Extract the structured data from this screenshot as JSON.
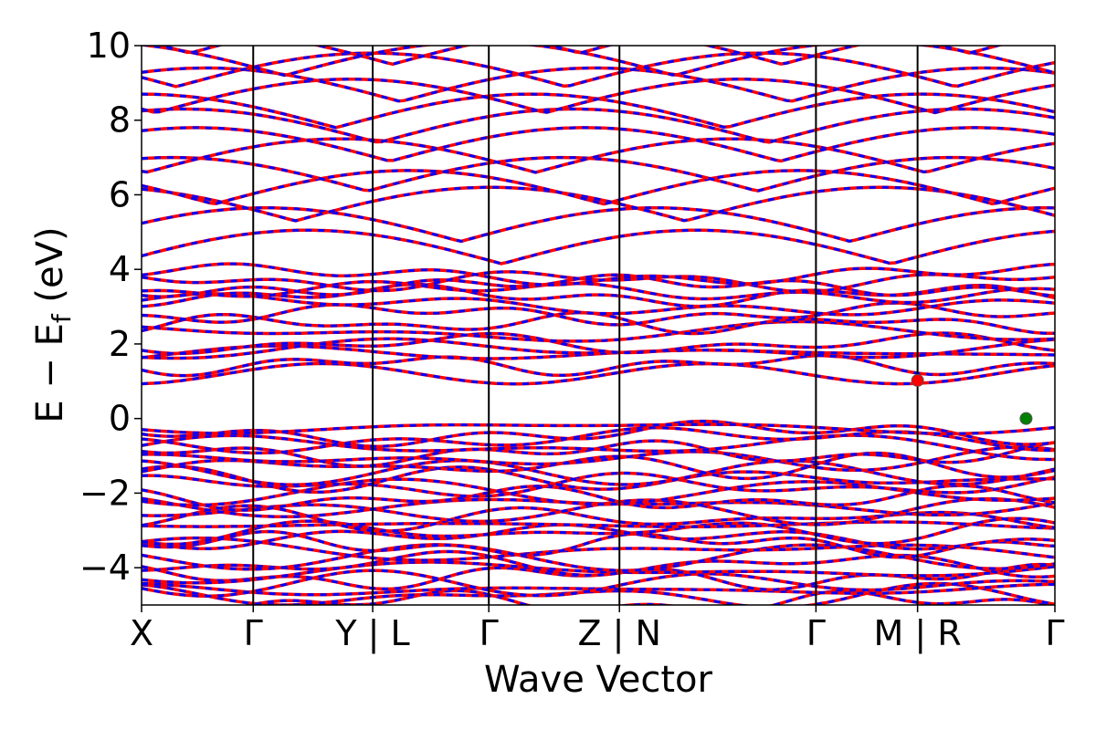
{
  "chart_data": {
    "type": "line",
    "title": "",
    "xlabel": "Wave Vector",
    "ylabel": {
      "main": "E − E",
      "sub": "f",
      "unit": " (eV)"
    },
    "ylim": [
      -5,
      10
    ],
    "yticks": [
      10,
      8,
      6,
      4,
      2,
      0,
      -2,
      -4
    ],
    "ytick_labels": [
      "10",
      "8",
      "6",
      "4",
      "2",
      "0",
      "−2",
      "−4"
    ],
    "kpath_segments": [
      {
        "from": "X",
        "to": "Γ",
        "length": 1.0
      },
      {
        "from": "Γ",
        "to": "Y",
        "length": 1.07
      },
      {
        "from": "L",
        "to": "Γ",
        "length": 1.04
      },
      {
        "from": "Γ",
        "to": "Z",
        "length": 1.17
      },
      {
        "from": "N",
        "to": "Γ",
        "length": 1.76
      },
      {
        "from": "Γ",
        "to": "M",
        "length": 0.91
      },
      {
        "from": "R",
        "to": "Γ",
        "length": 1.23
      }
    ],
    "xtick_labels": [
      "X",
      "Γ",
      "Y | L",
      "Γ",
      "Z | N",
      "Γ",
      "M | R",
      "Γ"
    ],
    "series": [
      {
        "color": "#ff0000",
        "style": "solid"
      },
      {
        "color": "#0000ff",
        "style": "dashed"
      }
    ],
    "grid": false,
    "band_edges": {
      "conduction_min": {
        "x_segment": 5,
        "x_frac": 1.0,
        "energy": 1.02,
        "color": "#ff0000"
      },
      "valence_max": {
        "x_segment": 6,
        "x_frac": 0.79,
        "energy": 0.0,
        "color": "#008000"
      }
    }
  }
}
